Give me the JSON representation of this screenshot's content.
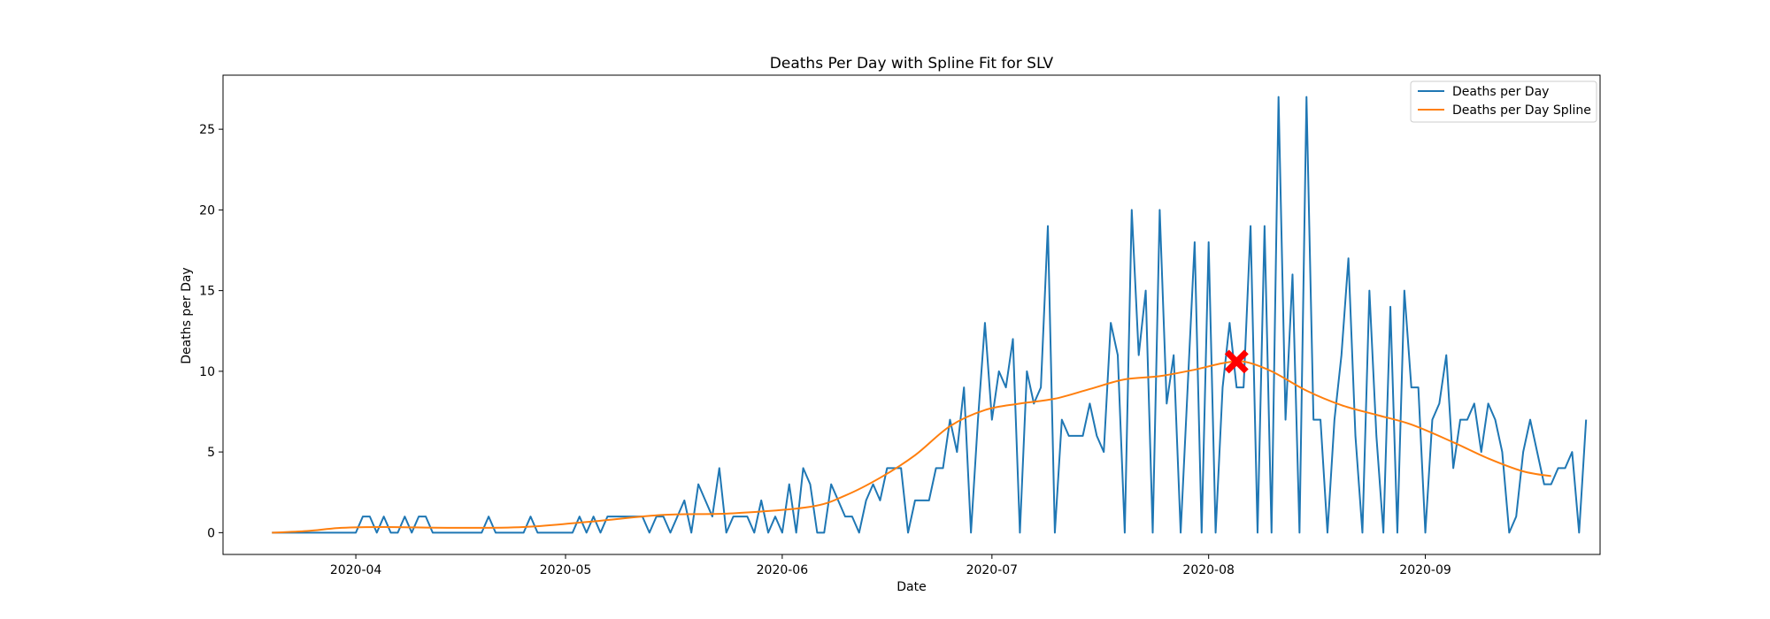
{
  "chart_data": {
    "type": "line",
    "title": "Deaths Per Day with Spline Fit for SLV",
    "xlabel": "Date",
    "ylabel": "Deaths per Day",
    "x_start": "2020-03-20",
    "x_end": "2020-09-19",
    "xlim": [
      "2020-03-13",
      "2020-09-26"
    ],
    "ylim": [
      -1.35,
      28.35
    ],
    "x_ticks": [
      "2020-04-01",
      "2020-05-01",
      "2020-06-01",
      "2020-07-01",
      "2020-08-01",
      "2020-09-01"
    ],
    "x_tick_labels": [
      "2020-04",
      "2020-05",
      "2020-06",
      "2020-07",
      "2020-08",
      "2020-09"
    ],
    "y_ticks": [
      0,
      5,
      10,
      15,
      20,
      25
    ],
    "grid": false,
    "legend_position": "top-right",
    "series": [
      {
        "name": "Deaths per Day",
        "color": "#1f77b4",
        "values": [
          0,
          0,
          0,
          0,
          0,
          0,
          0,
          0,
          0,
          0,
          0,
          0,
          0,
          1,
          1,
          0,
          1,
          0,
          0,
          1,
          0,
          1,
          1,
          0,
          0,
          0,
          0,
          0,
          0,
          0,
          0,
          1,
          0,
          0,
          0,
          0,
          0,
          1,
          0,
          0,
          0,
          0,
          0,
          0,
          1,
          0,
          1,
          0,
          1,
          1,
          1,
          1,
          1,
          1,
          0,
          1,
          1,
          0,
          1,
          2,
          0,
          3,
          2,
          1,
          4,
          0,
          1,
          1,
          1,
          0,
          2,
          0,
          1,
          0,
          3,
          0,
          4,
          3,
          0,
          0,
          3,
          2,
          1,
          1,
          0,
          2,
          3,
          2,
          4,
          4,
          4,
          0,
          2,
          2,
          2,
          4,
          4,
          7,
          5,
          9,
          0,
          7,
          13,
          7,
          10,
          9,
          12,
          0,
          10,
          8,
          9,
          19,
          0,
          7,
          6,
          6,
          6,
          8,
          6,
          5,
          13,
          11,
          0,
          20,
          11,
          15,
          0,
          20,
          8,
          11,
          0,
          9,
          18,
          0,
          18,
          0,
          9,
          13,
          9,
          9,
          19,
          0,
          19,
          0,
          27,
          7,
          16,
          0,
          27,
          7,
          7,
          0,
          7,
          11,
          17,
          6,
          0,
          15,
          6,
          0,
          14,
          0,
          15,
          9,
          9,
          0,
          7,
          8,
          11,
          4,
          7,
          7,
          8,
          5,
          8,
          7,
          5,
          0,
          1,
          5,
          7,
          5,
          3,
          3,
          4,
          4,
          5,
          0,
          7
        ]
      },
      {
        "name": "Deaths per Day Spline",
        "color": "#ff7f0e",
        "x": [
          "2020-03-20",
          "2020-03-25",
          "2020-03-30",
          "2020-04-05",
          "2020-04-15",
          "2020-04-25",
          "2020-05-05",
          "2020-05-15",
          "2020-05-25",
          "2020-06-05",
          "2020-06-10",
          "2020-06-15",
          "2020-06-20",
          "2020-06-25",
          "2020-06-30",
          "2020-07-05",
          "2020-07-10",
          "2020-07-15",
          "2020-07-20",
          "2020-07-25",
          "2020-07-30",
          "2020-08-03",
          "2020-08-06",
          "2020-08-10",
          "2020-08-15",
          "2020-08-20",
          "2020-08-25",
          "2020-08-30",
          "2020-09-05",
          "2020-09-10",
          "2020-09-15",
          "2020-09-19"
        ],
        "values": [
          0,
          0.1,
          0.3,
          0.35,
          0.3,
          0.35,
          0.7,
          1.1,
          1.2,
          1.6,
          2.3,
          3.4,
          4.8,
          6.6,
          7.6,
          8.0,
          8.3,
          8.9,
          9.5,
          9.7,
          10.1,
          10.5,
          10.6,
          10.0,
          8.8,
          7.9,
          7.3,
          6.7,
          5.6,
          4.6,
          3.8,
          3.5
        ]
      }
    ],
    "annotations": [
      {
        "type": "marker",
        "symbol": "X",
        "x": "2020-08-05",
        "y": 10.6,
        "color": "#ff0000"
      }
    ]
  }
}
